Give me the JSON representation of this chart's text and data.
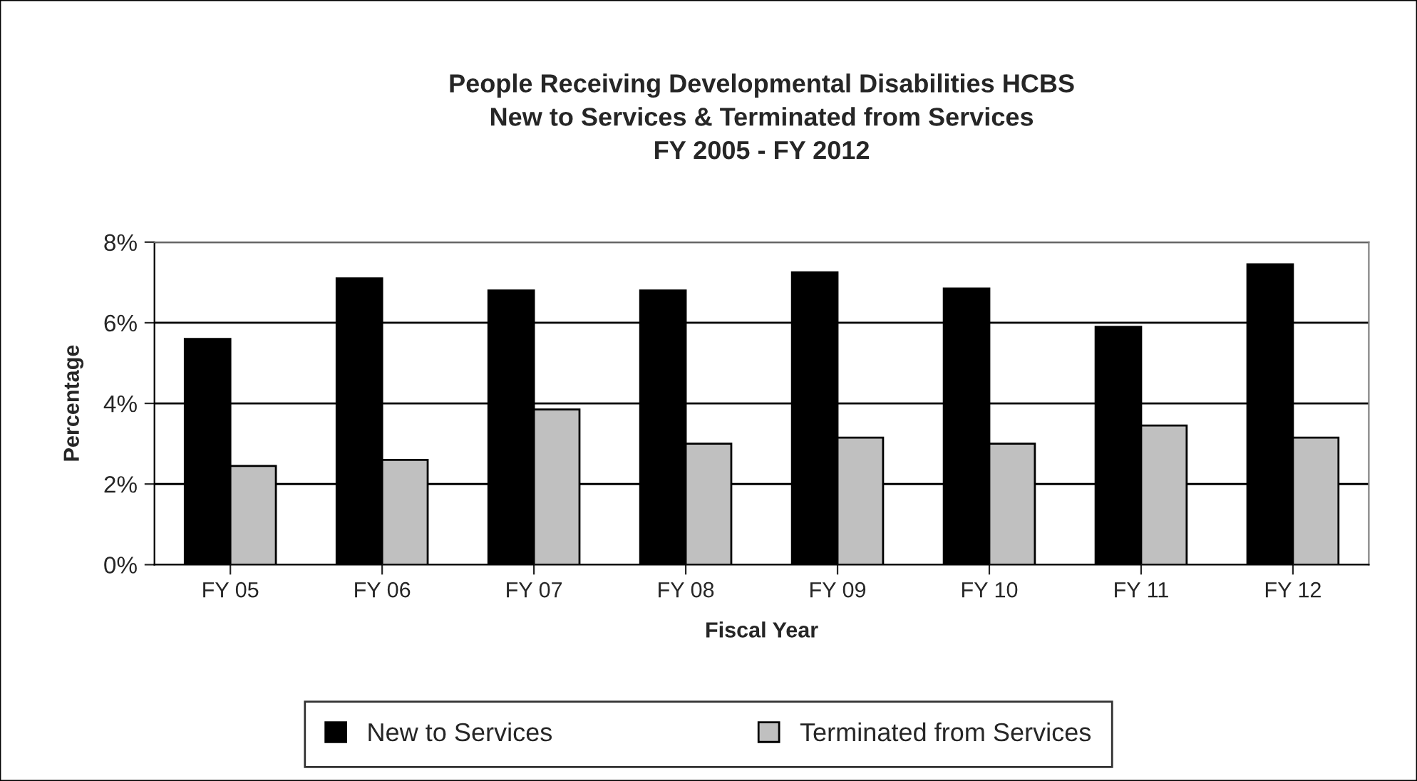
{
  "chart_data": {
    "type": "bar",
    "title": "People Receiving Developmental Disabilities HCBS\nNew to Services & Terminated from Services\nFY 2005 - FY 2012",
    "xlabel": "Fiscal Year",
    "ylabel": "Percentage",
    "categories": [
      "FY 05",
      "FY 06",
      "FY 07",
      "FY 08",
      "FY 09",
      "FY 10",
      "FY 11",
      "FY 12"
    ],
    "series": [
      {
        "name": "New to Services",
        "color": "#000000",
        "values": [
          5.6,
          7.1,
          6.8,
          6.8,
          7.25,
          6.85,
          5.9,
          7.45
        ]
      },
      {
        "name": "Terminated from Services",
        "color": "#c0c0c0",
        "values": [
          2.45,
          2.6,
          3.85,
          3.0,
          3.15,
          3.0,
          3.45,
          3.15
        ]
      }
    ],
    "ylim": [
      0,
      8
    ],
    "yticks": [
      {
        "value": 0,
        "label": "0%"
      },
      {
        "value": 2,
        "label": "2%"
      },
      {
        "value": 4,
        "label": "4%"
      },
      {
        "value": 6,
        "label": "6%"
      },
      {
        "value": 8,
        "label": "8%"
      }
    ],
    "grid": "y",
    "legend": "bottom"
  }
}
